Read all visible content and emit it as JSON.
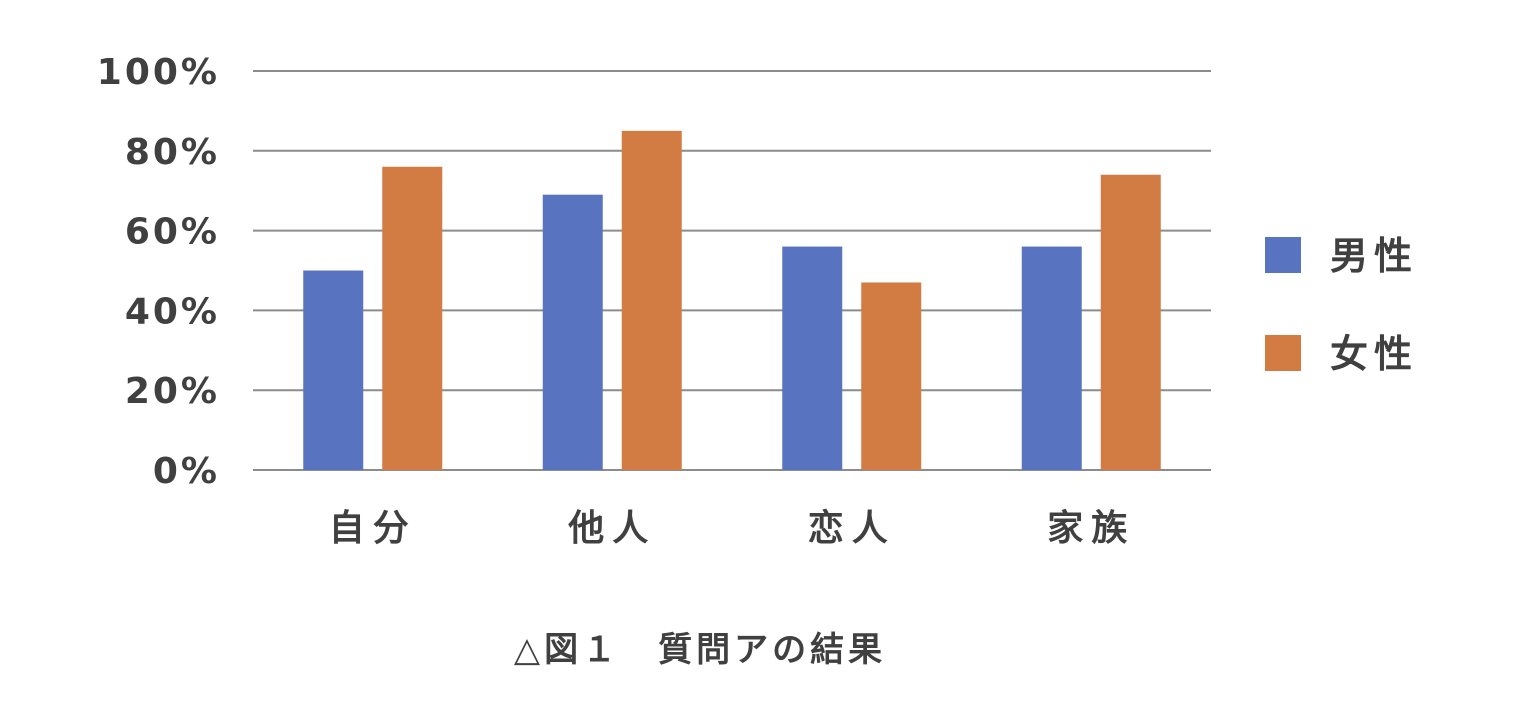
{
  "chart_data": {
    "type": "bar",
    "categories": [
      "自分",
      "他人",
      "恋人",
      "家族"
    ],
    "series": [
      {
        "name": "男性",
        "values": [
          50,
          69,
          56,
          56
        ]
      },
      {
        "name": "女性",
        "values": [
          76,
          85,
          47,
          74
        ]
      }
    ],
    "ylim": [
      0,
      100
    ],
    "yticks": [
      0,
      20,
      40,
      60,
      80,
      100
    ],
    "ytick_labels": [
      "0%",
      "20%",
      "40%",
      "60%",
      "80%",
      "100%"
    ],
    "grid": true,
    "legend_position": "right",
    "colors": [
      "#5874c0",
      "#d27c43"
    ]
  },
  "caption": "△図１　質問アの結果"
}
